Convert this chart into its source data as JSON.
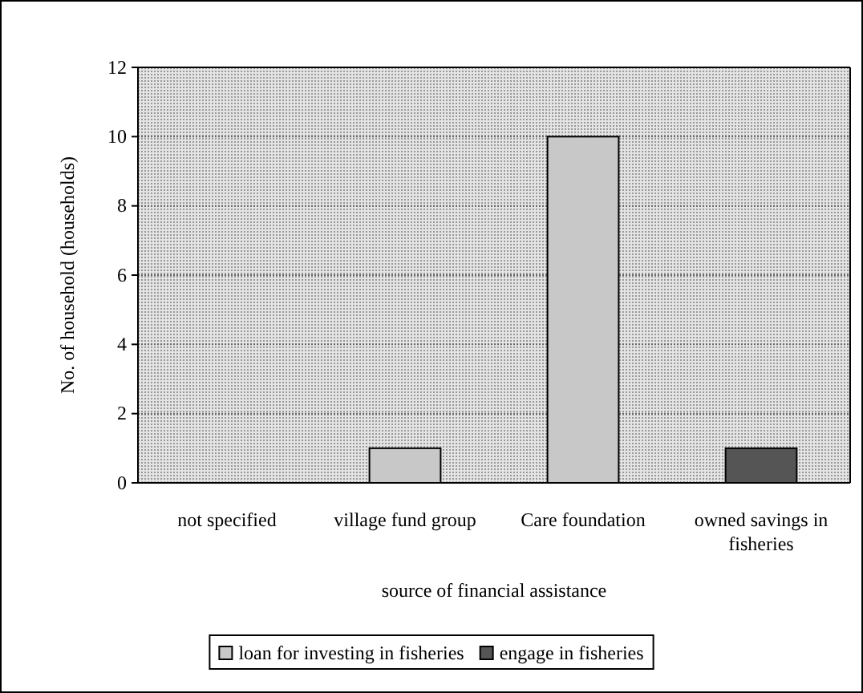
{
  "chart_data": {
    "type": "bar",
    "xlabel": "source of financial assistance",
    "ylabel": "No. of household (households)",
    "categories": [
      "not specified",
      "village fund group",
      "Care foundation",
      "owned savings in fisheries"
    ],
    "series": [
      {
        "name": "loan for investing in fisheries",
        "color": "#c8c8c8",
        "values": [
          0,
          1,
          10,
          0
        ]
      },
      {
        "name": "engage in fisheries",
        "color": "#555555",
        "values": [
          0,
          0,
          0,
          1
        ]
      }
    ],
    "stacked": true,
    "ylim": [
      0,
      12
    ],
    "yticks": [
      0,
      2,
      4,
      6,
      8,
      10,
      12
    ],
    "grid": "y",
    "legend": "bottom"
  }
}
